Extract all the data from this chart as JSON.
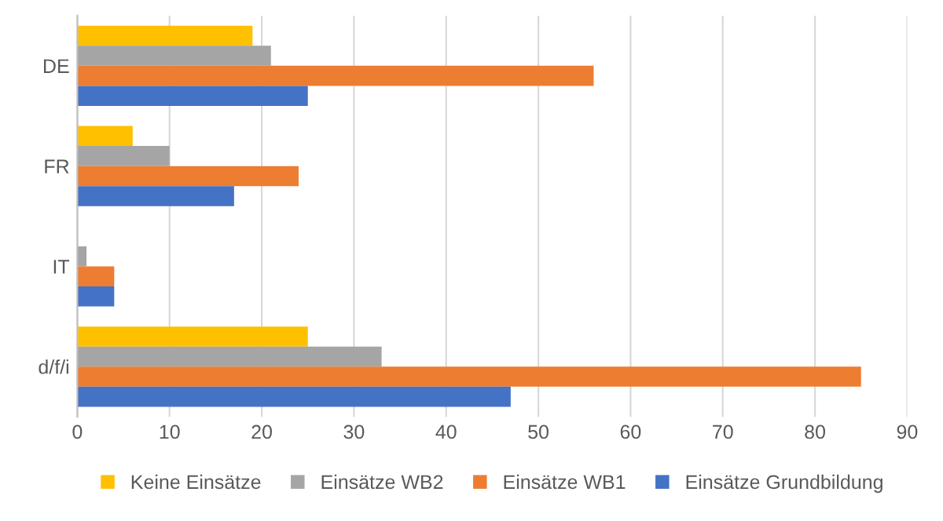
{
  "chart_data": {
    "type": "bar",
    "orientation": "horizontal",
    "categories": [
      "DE",
      "FR",
      "IT",
      "d/f/i"
    ],
    "series": [
      {
        "name": "Keine Einsätze",
        "color": "#ffc000",
        "values": [
          19,
          6,
          0,
          25
        ]
      },
      {
        "name": "Einsätze WB2",
        "color": "#a5a5a5",
        "values": [
          21,
          10,
          1,
          33
        ]
      },
      {
        "name": "Einsätze WB1",
        "color": "#ed7d31",
        "values": [
          56,
          24,
          4,
          85
        ]
      },
      {
        "name": "Einsätze Grundbildung",
        "color": "#4472c4",
        "values": [
          25,
          17,
          4,
          47
        ]
      }
    ],
    "xlim": [
      0,
      90
    ],
    "xticks": [
      0,
      10,
      20,
      30,
      40,
      50,
      60,
      70,
      80,
      90
    ],
    "grid": "x",
    "legend": "bottom"
  }
}
